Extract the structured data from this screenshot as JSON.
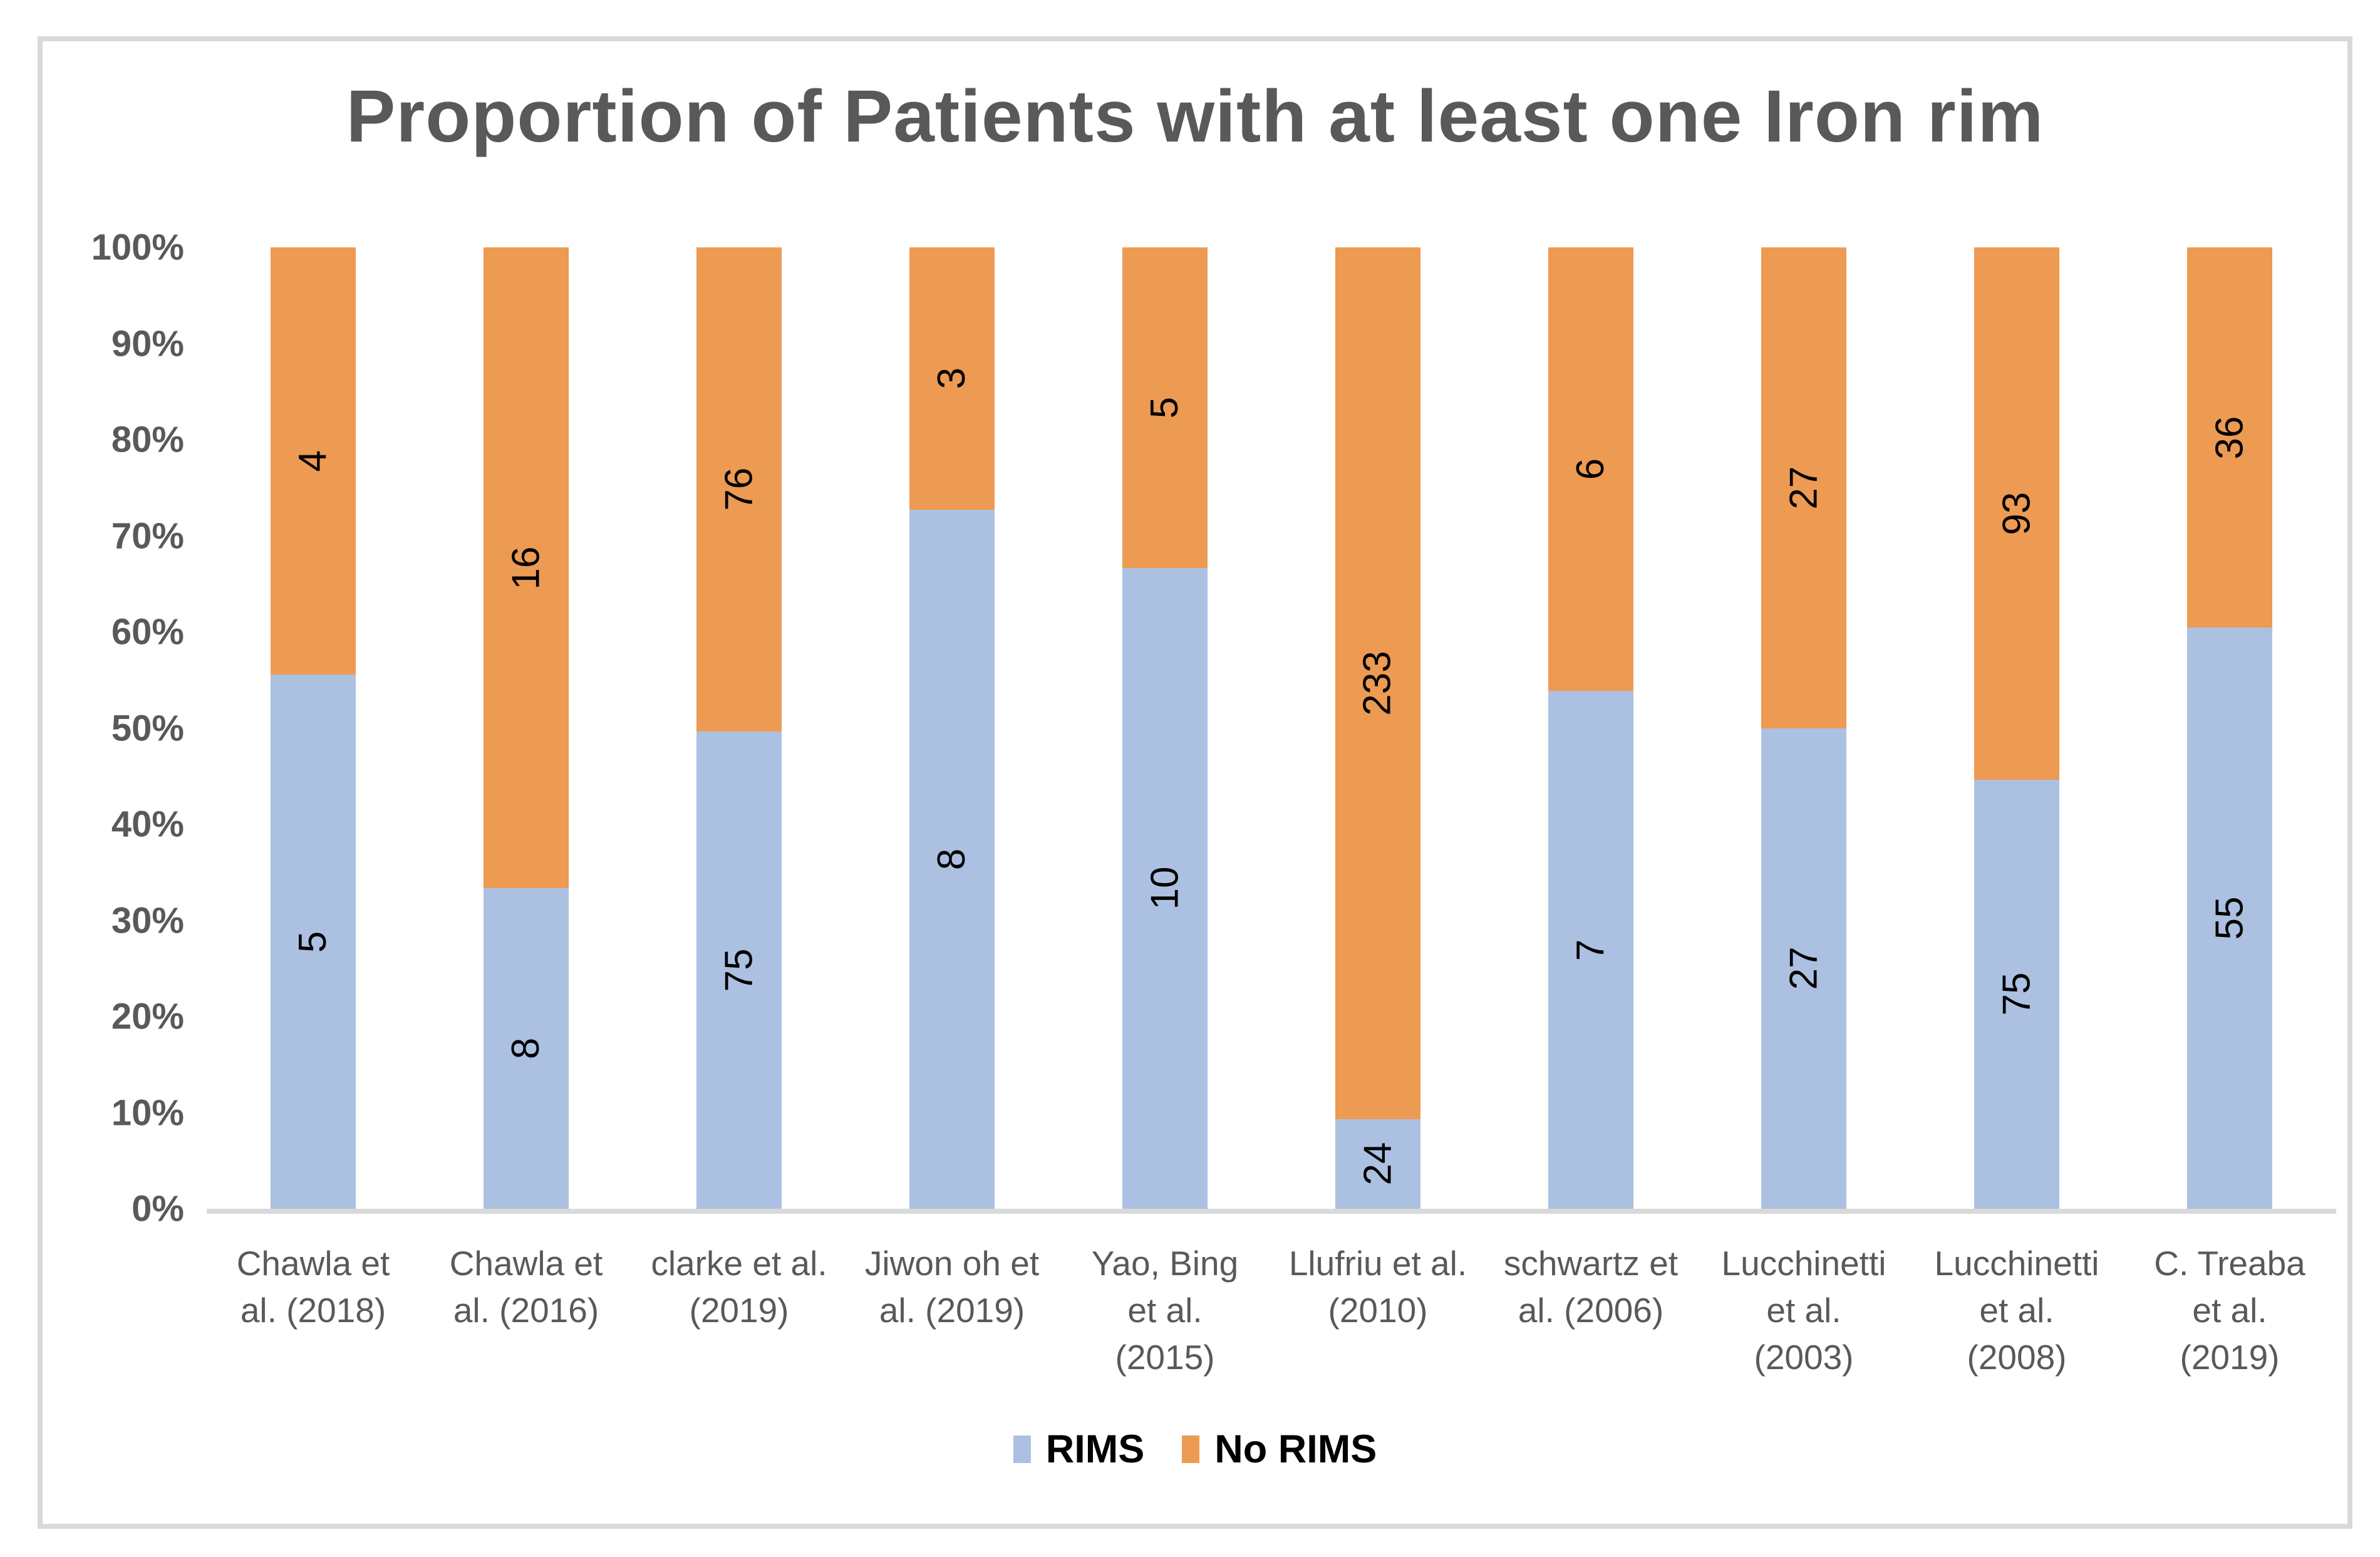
{
  "frame_border_color": "#D9D9D9",
  "text_color": "#595959",
  "data_label_color": "#000000",
  "chart_data": {
    "type": "bar",
    "subtype": "stacked-100-percent",
    "title": "Proportion of Patients with at least one Iron rim",
    "categories": [
      "Chawla et al. (2018)",
      "Chawla et al. (2016)",
      "clarke et al. (2019)",
      "Jiwon oh et al. (2019)",
      "Yao, Bing et al. (2015)",
      "Llufriu et al. (2010)",
      "schwartz et al. (2006)",
      "Lucchinetti et al. (2003)",
      "Lucchinetti et al. (2008)",
      "C. Treaba et al. (2019)"
    ],
    "series": [
      {
        "name": "RIMS",
        "color": "#ACC1E1",
        "values": [
          5,
          8,
          75,
          8,
          10,
          24,
          7,
          27,
          75,
          55
        ]
      },
      {
        "name": "No RIMS",
        "color": "#ED9A53",
        "values": [
          4,
          16,
          76,
          3,
          5,
          233,
          6,
          27,
          93,
          36
        ]
      }
    ],
    "y_axis": {
      "min": 0,
      "max": 100,
      "ticks": [
        "100%",
        "90%",
        "80%",
        "70%",
        "60%",
        "50%",
        "40%",
        "30%",
        "20%",
        "10%",
        "0%"
      ]
    },
    "xlabel": "",
    "ylabel": "",
    "gridlines": false,
    "legend_position": "bottom",
    "data_label_rotation": -90
  }
}
